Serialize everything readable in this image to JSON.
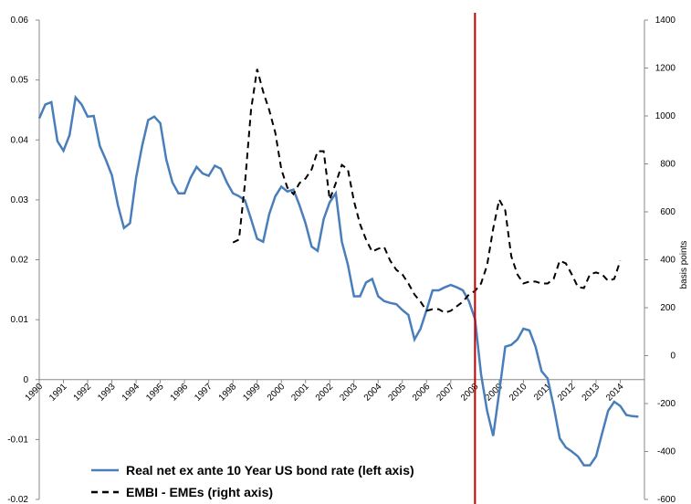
{
  "chart_data": {
    "type": "line",
    "xlim": [
      1990,
      2015
    ],
    "xticks": [
      1990,
      1991,
      1992,
      1993,
      1994,
      1995,
      1996,
      1997,
      1998,
      1999,
      2000,
      2001,
      2002,
      2003,
      2004,
      2005,
      2006,
      2007,
      2008,
      2009,
      2010,
      2011,
      2012,
      2013,
      2014
    ],
    "ylim": [
      -0.02,
      0.06
    ],
    "yticks": [
      -0.02,
      -0.01,
      0,
      0.01,
      0.02,
      0.03,
      0.04,
      0.05,
      0.06
    ],
    "y2lim": [
      -600,
      1400
    ],
    "y2ticks": [
      -600,
      -400,
      -200,
      0,
      200,
      400,
      600,
      800,
      1000,
      1200,
      1400
    ],
    "y2label": "basis points",
    "vline": 2008,
    "vline_color": "#c00000",
    "legend": "lower left",
    "x": [
      1990,
      1990.25,
      1990.5,
      1990.75,
      1991,
      1991.25,
      1991.5,
      1991.75,
      1992,
      1992.25,
      1992.5,
      1992.75,
      1993,
      1993.25,
      1993.5,
      1993.75,
      1994,
      1994.25,
      1994.5,
      1994.75,
      1995,
      1995.25,
      1995.5,
      1995.75,
      1996,
      1996.25,
      1996.5,
      1996.75,
      1997,
      1997.25,
      1997.5,
      1997.75,
      1998,
      1998.25,
      1998.5,
      1998.75,
      1999,
      1999.25,
      1999.5,
      1999.75,
      2000,
      2000.25,
      2000.5,
      2000.75,
      2001,
      2001.25,
      2001.5,
      2001.75,
      2002,
      2002.25,
      2002.5,
      2002.75,
      2003,
      2003.25,
      2003.5,
      2003.75,
      2004,
      2004.25,
      2004.5,
      2004.75,
      2005,
      2005.25,
      2005.5,
      2005.75,
      2006,
      2006.25,
      2006.5,
      2006.75,
      2007,
      2007.25,
      2007.5,
      2007.75,
      2008,
      2008.25,
      2008.5,
      2008.75,
      2009,
      2009.25,
      2009.5,
      2009.75,
      2010,
      2010.25,
      2010.5,
      2010.75,
      2011,
      2011.25,
      2011.5,
      2011.75,
      2012,
      2012.25,
      2012.5,
      2012.75,
      2013,
      2013.25,
      2013.5,
      2013.75,
      2014,
      2014.25,
      2014.5,
      2014.75
    ],
    "series": [
      {
        "name": "Real net ex ante 10 Year US bond rate (left axis)",
        "color": "#4a7ebb",
        "dash": false,
        "values": [
          0.0436,
          0.0459,
          0.0463,
          0.0398,
          0.0382,
          0.0408,
          0.0471,
          0.0459,
          0.0439,
          0.044,
          0.039,
          0.0367,
          0.0341,
          0.0291,
          0.0253,
          0.0261,
          0.0337,
          0.039,
          0.0433,
          0.0439,
          0.0428,
          0.0367,
          0.0329,
          0.0311,
          0.0311,
          0.0337,
          0.0355,
          0.0344,
          0.034,
          0.0357,
          0.0352,
          0.0329,
          0.0311,
          0.0306,
          0.0299,
          0.0268,
          0.0235,
          0.023,
          0.0276,
          0.0306,
          0.0322,
          0.0314,
          0.0317,
          0.0291,
          0.0261,
          0.0222,
          0.0215,
          0.0268,
          0.0296,
          0.0311,
          0.023,
          0.0192,
          0.0139,
          0.0139,
          0.0162,
          0.0168,
          0.0139,
          0.0131,
          0.0128,
          0.0126,
          0.0116,
          0.0108,
          0.0067,
          0.0085,
          0.0116,
          0.0149,
          0.0149,
          0.0154,
          0.0158,
          0.0154,
          0.0149,
          0.0131,
          0.0101,
          0.0009,
          -0.0052,
          -0.0094,
          -0.0021,
          0.0055,
          0.0058,
          0.0067,
          0.0085,
          0.0082,
          0.0055,
          0.0014,
          0.0002,
          -0.0044,
          -0.0098,
          -0.0113,
          -0.012,
          -0.0128,
          -0.0143,
          -0.0143,
          -0.0128,
          -0.009,
          -0.0052,
          -0.0037,
          -0.0044,
          -0.0059,
          -0.0061,
          -0.0062
        ]
      },
      {
        "name": "EMBI - EMEs (right axis)",
        "color": "#000000",
        "dash": true,
        "axis": "y2",
        "values": [
          null,
          null,
          null,
          null,
          null,
          null,
          null,
          null,
          null,
          null,
          null,
          null,
          null,
          null,
          null,
          null,
          null,
          null,
          null,
          null,
          null,
          null,
          null,
          null,
          null,
          null,
          null,
          null,
          null,
          null,
          null,
          null,
          472,
          484,
          720,
          1025,
          1196,
          1101,
          1025,
          930,
          777,
          701,
          674,
          720,
          739,
          777,
          853,
          853,
          651,
          720,
          796,
          777,
          644,
          549,
          484,
          434,
          446,
          453,
          396,
          358,
          339,
          301,
          255,
          225,
          187,
          194,
          194,
          179,
          187,
          206,
          225,
          255,
          270,
          301,
          377,
          530,
          651,
          606,
          415,
          339,
          301,
          309,
          309,
          301,
          301,
          320,
          396,
          385,
          339,
          286,
          282,
          339,
          347,
          339,
          312,
          320,
          396,
          null,
          null,
          null
        ]
      }
    ]
  }
}
